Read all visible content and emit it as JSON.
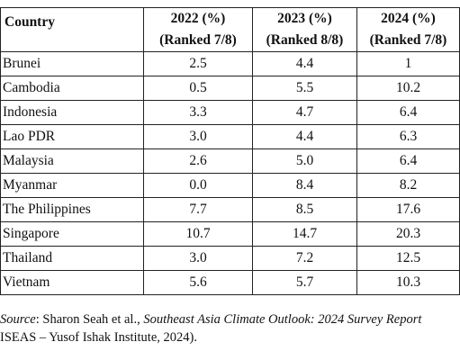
{
  "table": {
    "header": {
      "country": "Country",
      "columns": [
        {
          "year": "2022 (%)",
          "rank": "(Ranked 7/8)"
        },
        {
          "year": "2023 (%)",
          "rank": "(Ranked 8/8)"
        },
        {
          "year": "2024 (%)",
          "rank": "(Ranked 7/8)"
        }
      ]
    },
    "rows": [
      {
        "country": "Brunei",
        "values": [
          "2.5",
          "4.4",
          "1"
        ]
      },
      {
        "country": "Cambodia",
        "values": [
          "0.5",
          "5.5",
          "10.2"
        ]
      },
      {
        "country": "Indonesia",
        "values": [
          "3.3",
          "4.7",
          "6.4"
        ]
      },
      {
        "country": "Lao PDR",
        "values": [
          "3.0",
          "4.4",
          "6.3"
        ]
      },
      {
        "country": "Malaysia",
        "values": [
          "2.6",
          "5.0",
          "6.4"
        ]
      },
      {
        "country": "Myanmar",
        "values": [
          "0.0",
          "8.4",
          "8.2"
        ]
      },
      {
        "country": "The Philippines",
        "values": [
          "7.7",
          "8.5",
          "17.6"
        ]
      },
      {
        "country": "Singapore",
        "values": [
          "10.7",
          "14.7",
          "20.3"
        ]
      },
      {
        "country": "Thailand",
        "values": [
          "3.0",
          "7.2",
          "12.5"
        ]
      },
      {
        "country": "Vietnam",
        "values": [
          "5.6",
          "5.7",
          "10.3"
        ]
      }
    ]
  },
  "source": {
    "label": "Source",
    "authors": ": Sharon Seah et al., ",
    "title": "Southeast Asia Climate Outlook: 2024 Survey Report",
    "line2": "ISEAS – Yusof Ishak Institute, 2024)."
  }
}
